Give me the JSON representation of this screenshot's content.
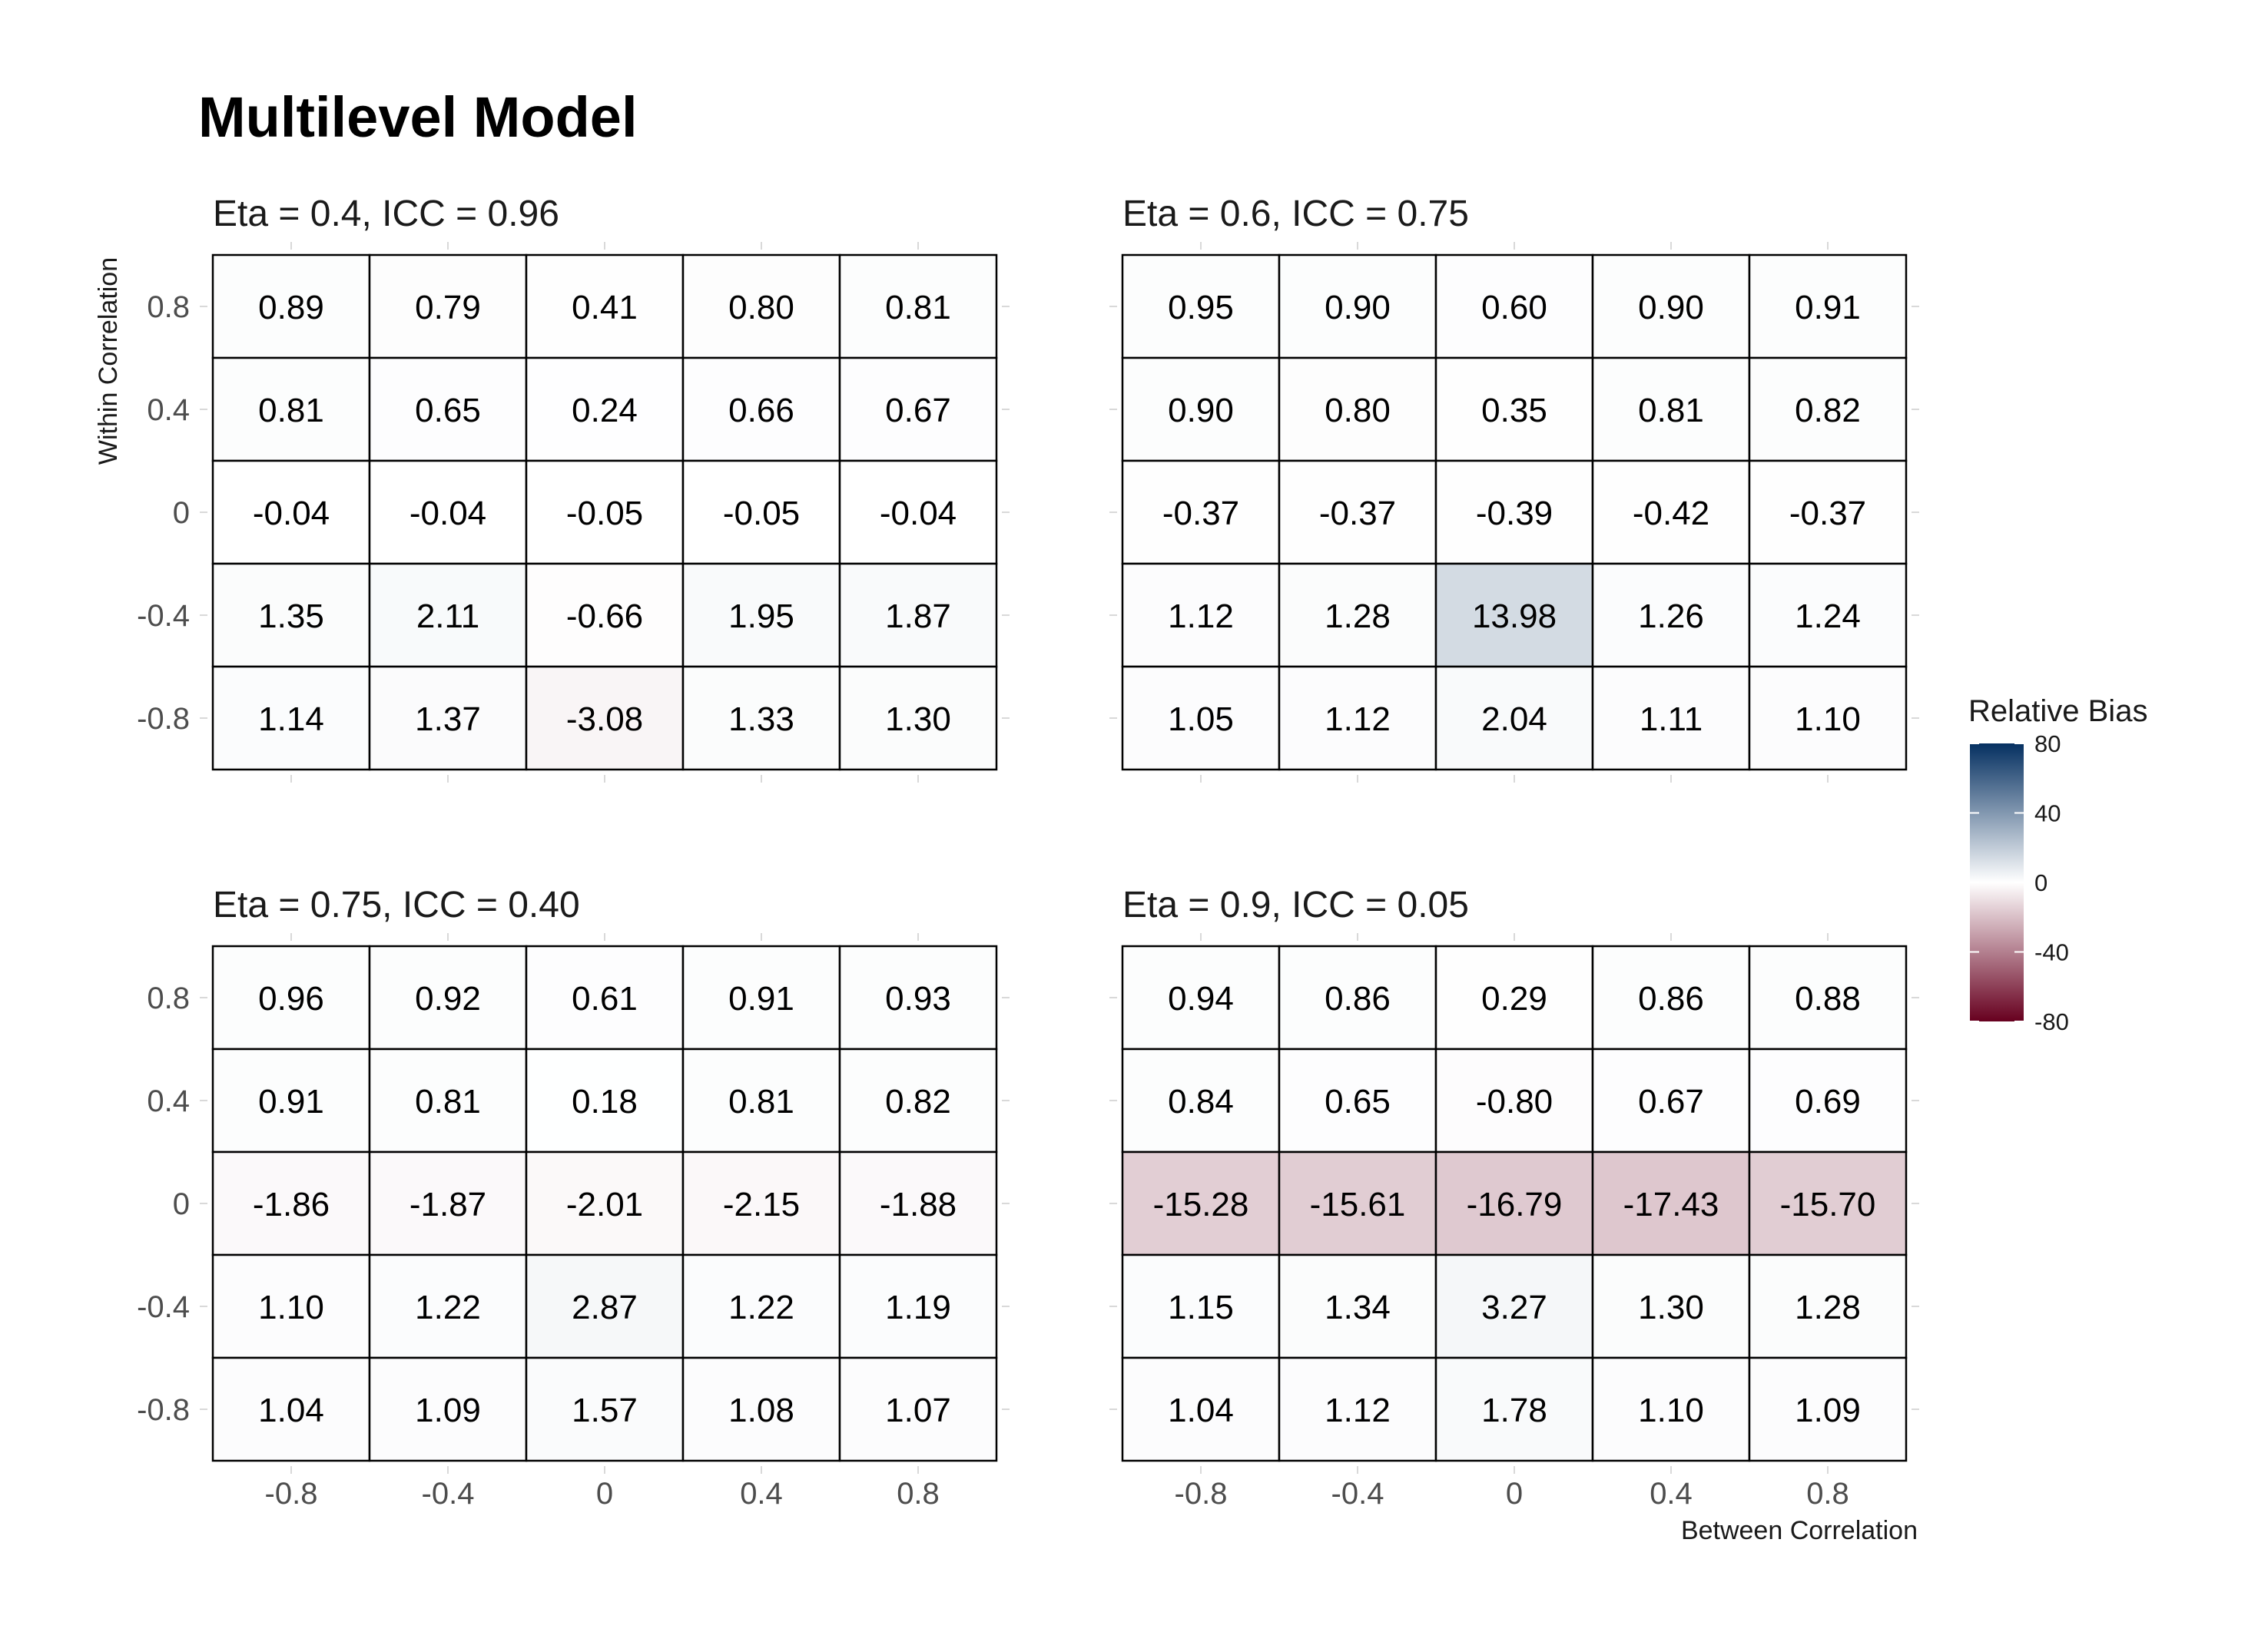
{
  "chart_data": {
    "type": "heatmap",
    "title": "Multilevel Model",
    "xlabel": "Between Correlation",
    "ylabel": "Within Correlation",
    "x_ticks": [
      "-0.8",
      "-0.4",
      "0",
      "0.4",
      "0.8"
    ],
    "y_ticks": [
      "0.8",
      "0.4",
      "0",
      "-0.4",
      "-0.8"
    ],
    "x_values": [
      -0.8,
      -0.4,
      0,
      0.4,
      0.8
    ],
    "y_values": [
      0.8,
      0.4,
      0,
      -0.4,
      -0.8
    ],
    "legend": {
      "title": "Relative Bias",
      "ticks": [
        "80",
        "40",
        "0",
        "-40",
        "-80"
      ],
      "limits": [
        -80,
        80
      ],
      "low_color": "#67001f",
      "mid_color": "#ffffff",
      "high_color": "#053061",
      "position": "right"
    },
    "panels": [
      {
        "title": "Eta = 0.4, ICC = 0.96",
        "values": [
          [
            "0.89",
            "0.79",
            "0.41",
            "0.80",
            "0.81"
          ],
          [
            "0.81",
            "0.65",
            "0.24",
            "0.66",
            "0.67"
          ],
          [
            "-0.04",
            "-0.04",
            "-0.05",
            "-0.05",
            "-0.04"
          ],
          [
            "1.35",
            "2.11",
            "-0.66",
            "1.95",
            "1.87"
          ],
          [
            "1.14",
            "1.37",
            "-3.08",
            "1.33",
            "1.30"
          ]
        ]
      },
      {
        "title": "Eta = 0.6, ICC = 0.75",
        "values": [
          [
            "0.95",
            "0.90",
            "0.60",
            "0.90",
            "0.91"
          ],
          [
            "0.90",
            "0.80",
            "0.35",
            "0.81",
            "0.82"
          ],
          [
            "-0.37",
            "-0.37",
            "-0.39",
            "-0.42",
            "-0.37"
          ],
          [
            "1.12",
            "1.28",
            "13.98",
            "1.26",
            "1.24"
          ],
          [
            "1.05",
            "1.12",
            "2.04",
            "1.11",
            "1.10"
          ]
        ]
      },
      {
        "title": "Eta = 0.75, ICC = 0.40",
        "values": [
          [
            "0.96",
            "0.92",
            "0.61",
            "0.91",
            "0.93"
          ],
          [
            "0.91",
            "0.81",
            "0.18",
            "0.81",
            "0.82"
          ],
          [
            "-1.86",
            "-1.87",
            "-2.01",
            "-2.15",
            "-1.88"
          ],
          [
            "1.10",
            "1.22",
            "2.87",
            "1.22",
            "1.19"
          ],
          [
            "1.04",
            "1.09",
            "1.57",
            "1.08",
            "1.07"
          ]
        ]
      },
      {
        "title": "Eta = 0.9, ICC = 0.05",
        "values": [
          [
            "0.94",
            "0.86",
            "0.29",
            "0.86",
            "0.88"
          ],
          [
            "0.84",
            "0.65",
            "-0.80",
            "0.67",
            "0.69"
          ],
          [
            "-15.28",
            "-15.61",
            "-16.79",
            "-17.43",
            "-15.70"
          ],
          [
            "1.15",
            "1.34",
            "3.27",
            "1.30",
            "1.28"
          ],
          [
            "1.04",
            "1.12",
            "1.78",
            "1.10",
            "1.09"
          ]
        ]
      }
    ]
  }
}
